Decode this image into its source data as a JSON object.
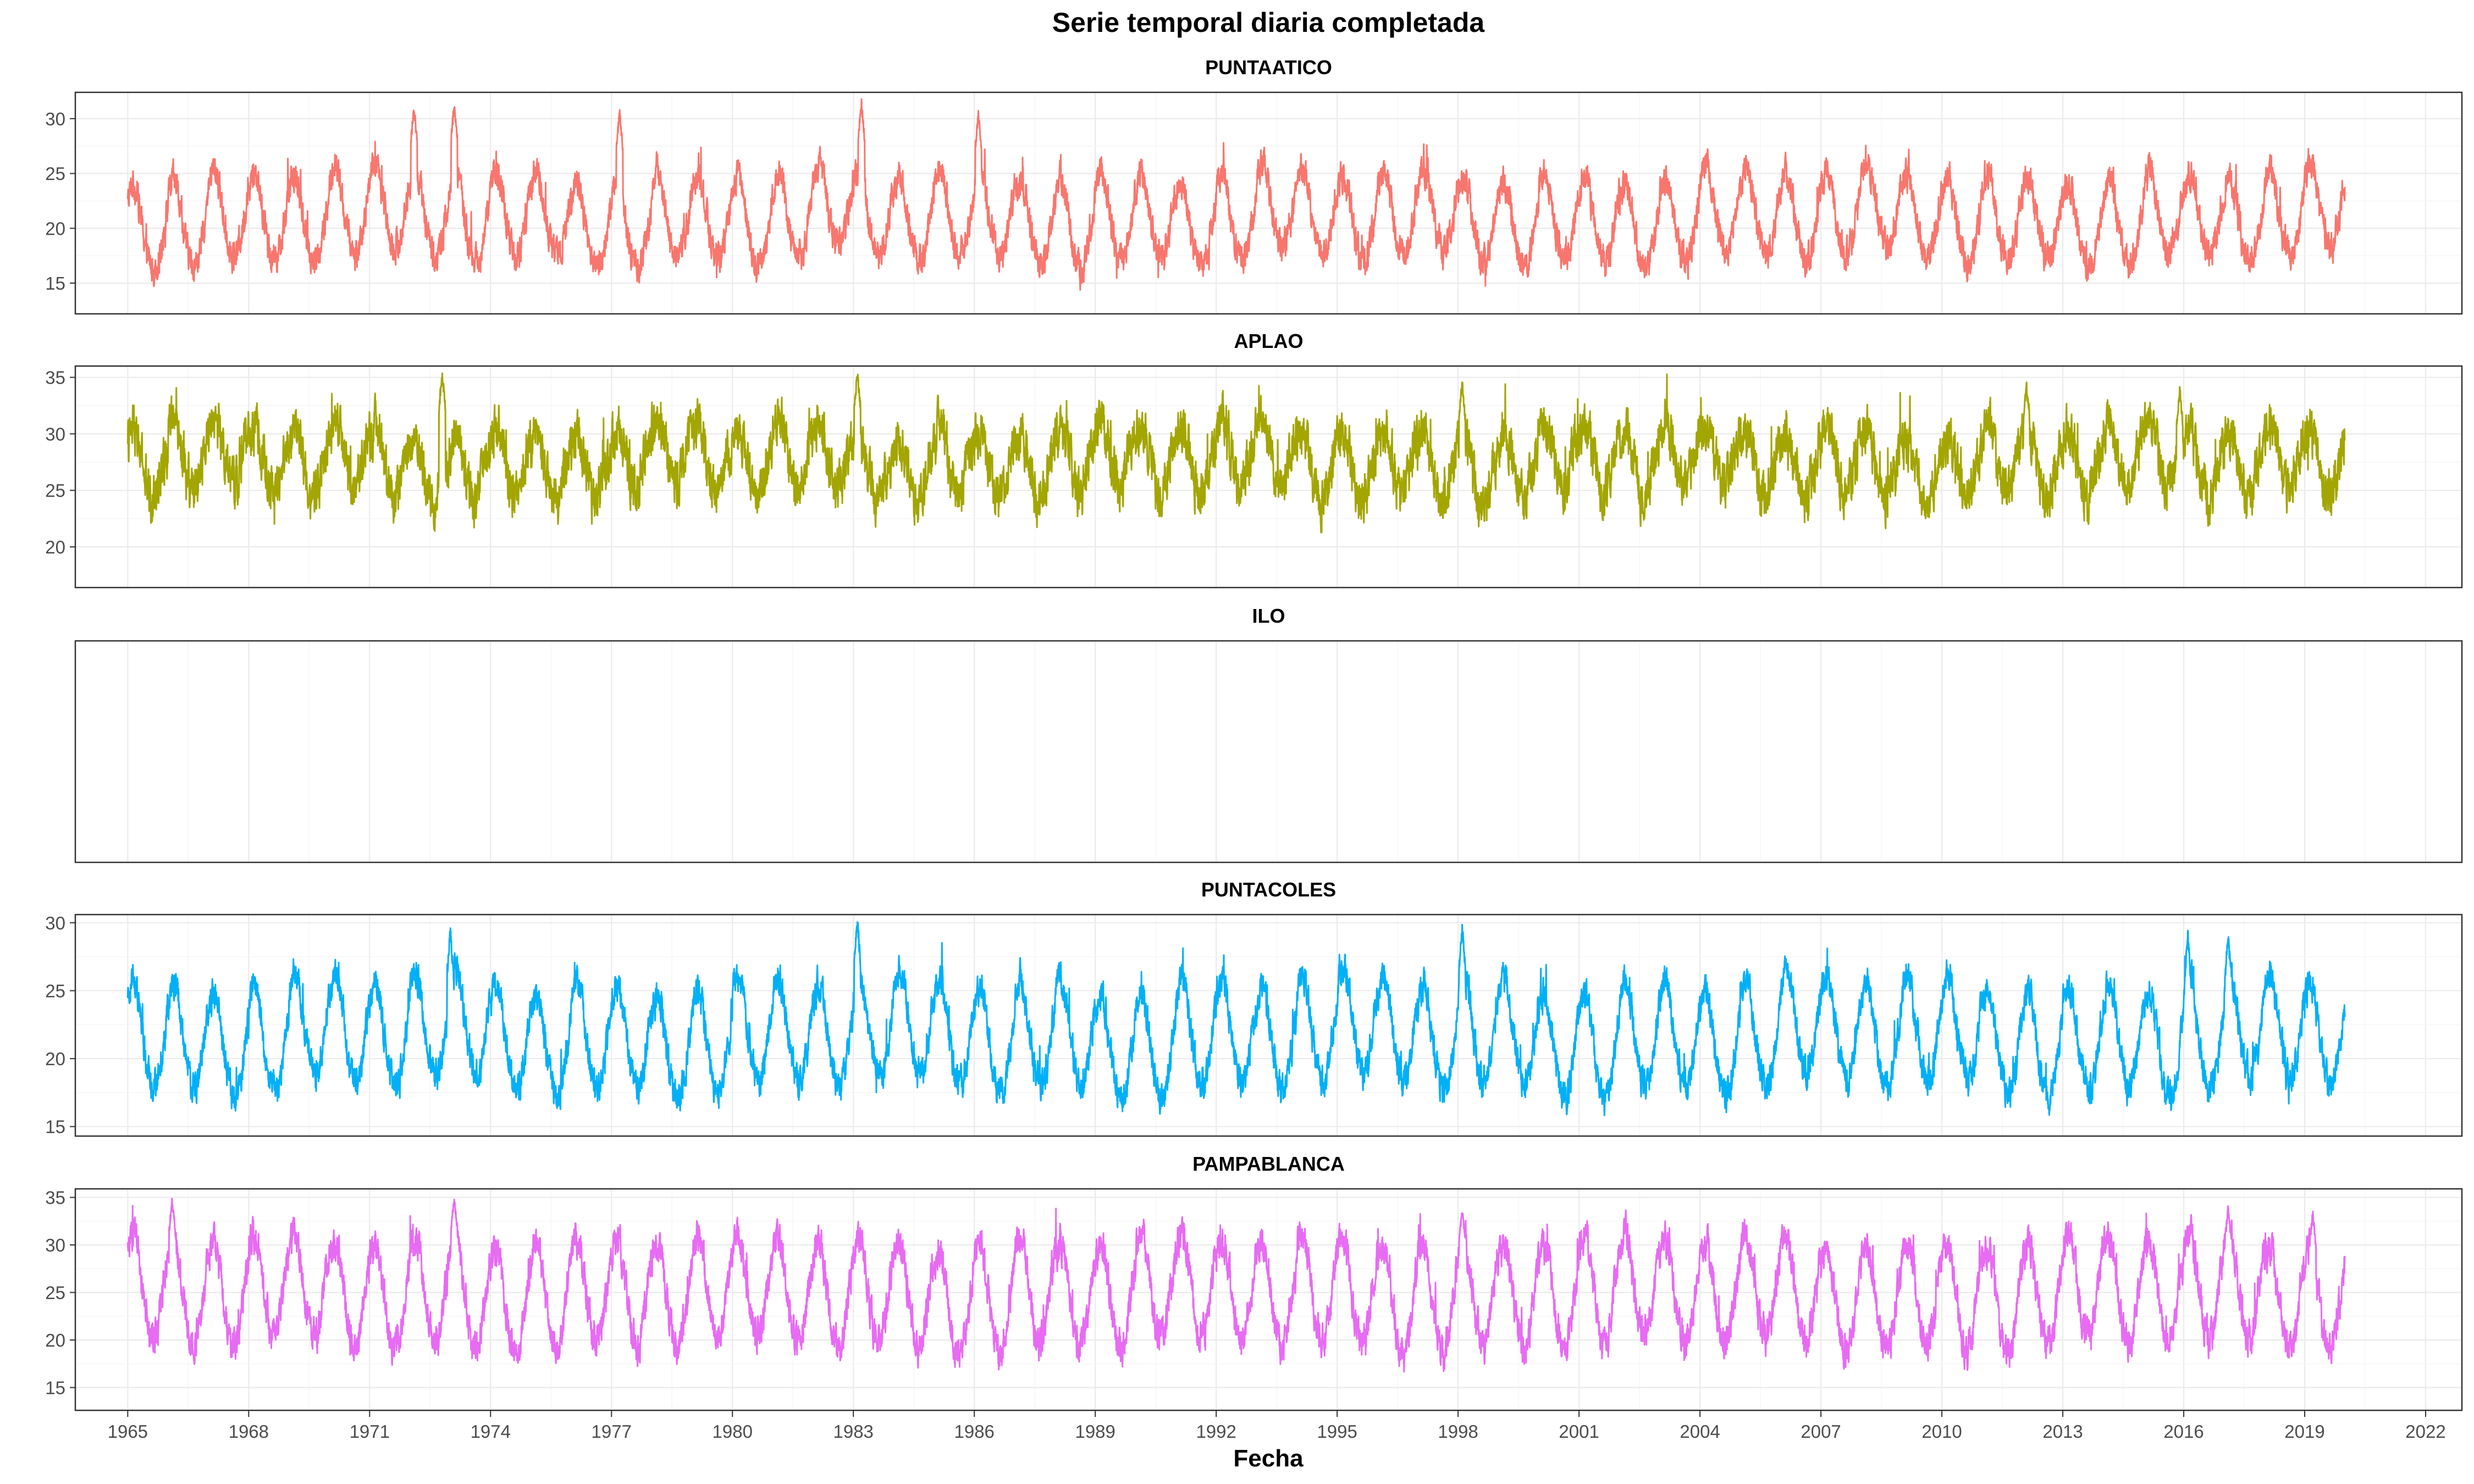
{
  "chart_data": {
    "type": "line",
    "title": "Serie temporal diaria completada",
    "xlabel": "Fecha",
    "ylabel": "",
    "x_tick_labels": [
      "1965",
      "1968",
      "1971",
      "1974",
      "1977",
      "1980",
      "1983",
      "1986",
      "1989",
      "1992",
      "1995",
      "1998",
      "2001",
      "2004",
      "2007",
      "2010",
      "2013",
      "2016",
      "2019",
      "2022"
    ],
    "x_range": [
      1963.7,
      2022.9
    ],
    "data_start": 1965.0,
    "data_end": 2020.0,
    "grid": true,
    "legend": "none",
    "panels": [
      {
        "name": "PUNTAATICO",
        "color": "#F8766D",
        "ylim": [
          12.2,
          32.4
        ],
        "y_ticks": [
          15,
          20,
          25,
          30
        ],
        "monthly_mean": [
          24.1,
          25.2,
          24.6,
          22.9,
          20.8,
          19.0,
          17.8,
          17.2,
          17.5,
          18.6,
          20.2,
          22.3
        ],
        "noise": 1.1,
        "peaks": [
          [
            1972.1,
            31.0
          ],
          [
            1973.1,
            31.3
          ],
          [
            1983.2,
            31.4
          ],
          [
            1977.2,
            30.5
          ],
          [
            1986.1,
            30.4
          ]
        ]
      },
      {
        "name": "APLAO",
        "color": "#A3A500",
        "ylim": [
          16.4,
          36.0
        ],
        "y_ticks": [
          20,
          25,
          30,
          35
        ],
        "monthly_mean": [
          29.8,
          30.6,
          30.2,
          29.0,
          27.5,
          25.8,
          24.6,
          24.4,
          25.2,
          26.6,
          27.9,
          29.0
        ],
        "noise": 1.6,
        "peaks": [
          [
            1972.8,
            35.4
          ],
          [
            1983.1,
            35.3
          ],
          [
            1998.1,
            34.5
          ],
          [
            2012.1,
            34.3
          ],
          [
            2015.9,
            33.9
          ]
        ]
      },
      {
        "name": "ILO",
        "color": "#00BF7D",
        "ylim": [
          0,
          1
        ],
        "y_ticks": [],
        "monthly_mean": [],
        "noise": 0,
        "peaks": []
      },
      {
        "name": "PUNTACOLES",
        "color": "#00B0F6",
        "ylim": [
          14.3,
          30.6
        ],
        "y_ticks": [
          15,
          20,
          25,
          30
        ],
        "monthly_mean": [
          24.8,
          25.8,
          25.3,
          23.6,
          21.6,
          19.9,
          18.6,
          17.9,
          18.1,
          19.2,
          20.9,
          23.0
        ],
        "noise": 0.9,
        "peaks": [
          [
            1983.1,
            30.1
          ],
          [
            1998.1,
            29.8
          ],
          [
            1973.0,
            29.4
          ],
          [
            2016.1,
            29.0
          ],
          [
            2017.1,
            29.0
          ]
        ]
      },
      {
        "name": "PAMPABLANCA",
        "color": "#E76BF3",
        "ylim": [
          12.6,
          35.9
        ],
        "y_ticks": [
          15,
          20,
          25,
          30,
          35
        ],
        "monthly_mean": [
          29.6,
          30.5,
          29.8,
          27.5,
          24.6,
          21.9,
          20.1,
          19.4,
          20.0,
          22.1,
          24.9,
          27.6
        ],
        "noise": 1.4,
        "peaks": [
          [
            1966.1,
            34.6
          ],
          [
            1973.1,
            34.8
          ],
          [
            1998.1,
            33.5
          ],
          [
            2017.1,
            33.7
          ],
          [
            2019.2,
            33.3
          ]
        ]
      }
    ]
  }
}
